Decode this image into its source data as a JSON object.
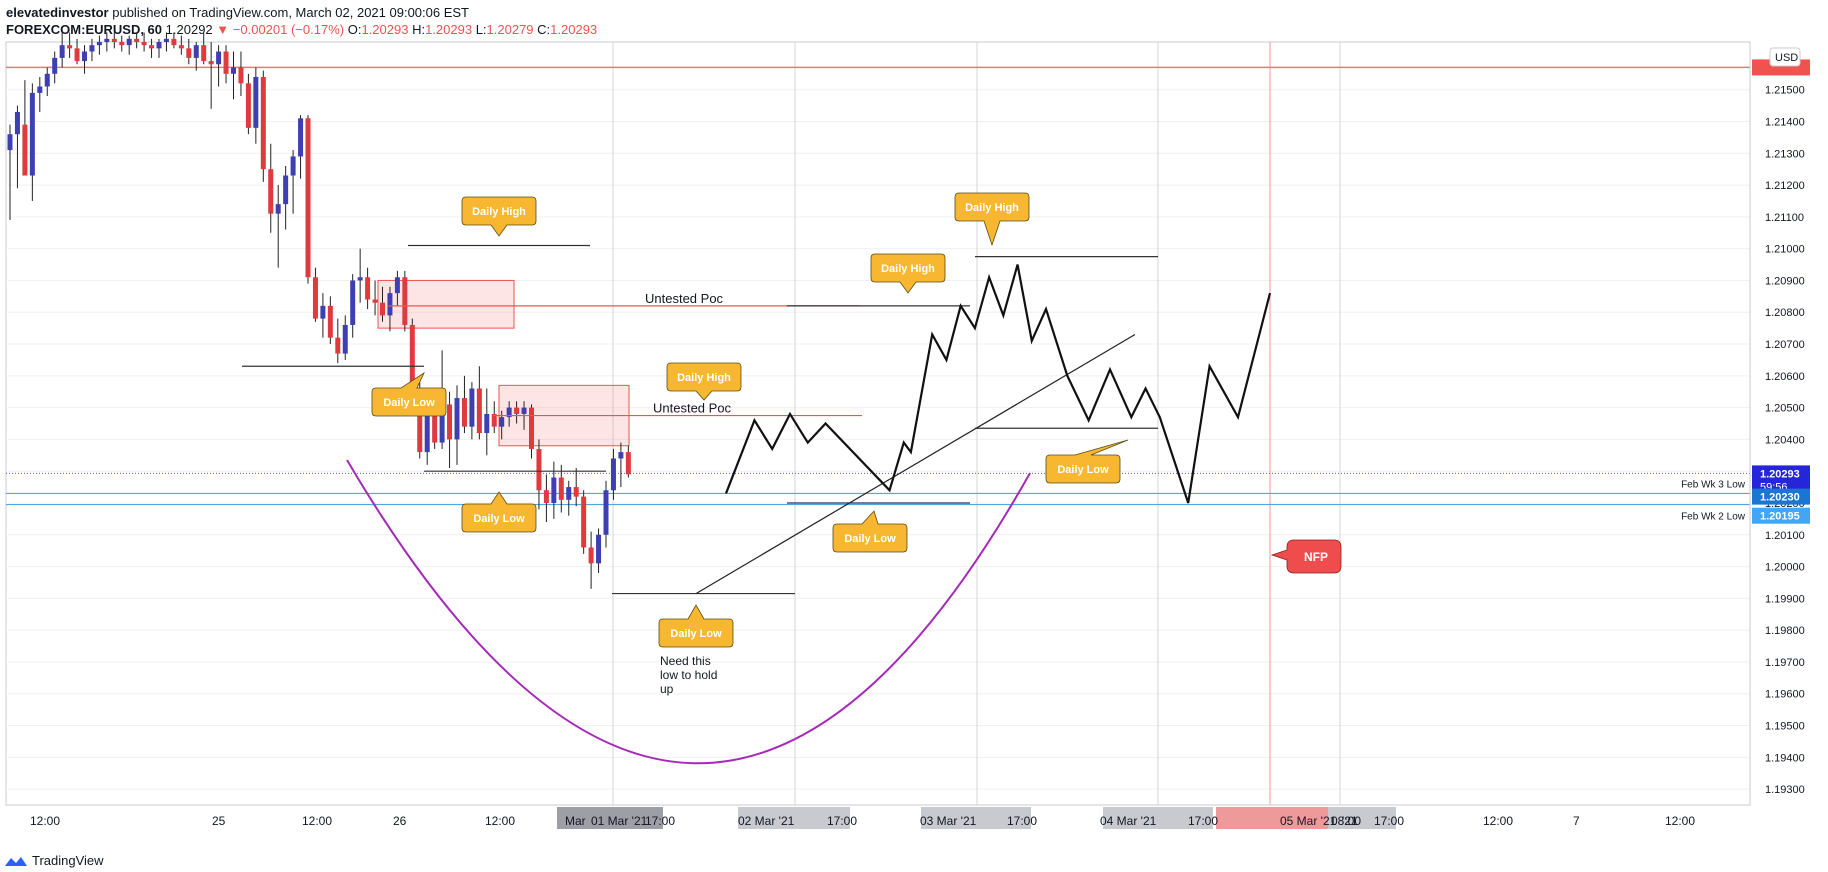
{
  "header": {
    "publisher": "elevatedinvestor",
    "published_text": "published on TradingView.com, March 02, 2021 09:00:06 EST",
    "symbol": "FOREXCOM:EURUSD, 60",
    "last": "1.20292",
    "arrow": "▼",
    "change": "−0.00201 (−0.17%)",
    "o_label": "O:",
    "o": "1.20293",
    "h_label": "H:",
    "h": "1.20293",
    "l_label": "L:",
    "l": "1.20279",
    "c_label": "C:",
    "c": "1.20293"
  },
  "footer": {
    "brand": "TradingView"
  },
  "colors": {
    "up": "#3f3fb4",
    "down": "#e0393e",
    "grid": "#d6d6da",
    "callout": "#f7b731",
    "purple": "#a42ab8",
    "nfp": "#ef4d4d"
  },
  "chart_data": {
    "type": "candlestick",
    "currency": "USD",
    "ylim": [
      1.1925,
      1.2165
    ],
    "y_ticks": [
      "1.21500",
      "1.21400",
      "1.21300",
      "1.21200",
      "1.21100",
      "1.21000",
      "1.20900",
      "1.20800",
      "1.20700",
      "1.20600",
      "1.20500",
      "1.20400",
      "1.20300",
      "1.20200",
      "1.20100",
      "1.20000",
      "1.19900",
      "1.19800",
      "1.19700",
      "1.19600",
      "1.19500",
      "1.19400",
      "1.19300"
    ],
    "x_ticks": [
      "12:00",
      "25",
      "12:00",
      "26",
      "12:00",
      "Mar",
      "01 Mar '21",
      "17:00",
      "02 Mar '21",
      "17:00",
      "03 Mar '21",
      "17:00",
      "04 Mar '21",
      "17:00",
      "05 Mar '21",
      "08:00",
      "'21",
      "17:00",
      "12:00",
      "7",
      "12:00"
    ],
    "price_labels": {
      "current": "1.20293",
      "countdown": "59:56",
      "wk3": "1.20230",
      "wk2": "1.20195",
      "wk3_name": "Feb Wk 3 Low",
      "wk2_name": "Feb Wk 2 Low"
    },
    "levels": {
      "resistance": 1.2157,
      "current": 1.20293,
      "wk3": 1.2023,
      "wk2": 1.20195
    },
    "candles": [
      [
        1.2131,
        1.2139,
        1.2109,
        1.2136
      ],
      [
        1.2136,
        1.2145,
        1.2119,
        1.2143
      ],
      [
        1.2139,
        1.2153,
        1.2123,
        1.2123
      ],
      [
        1.2123,
        1.2152,
        1.2115,
        1.2149
      ],
      [
        1.2149,
        1.2154,
        1.2143,
        1.2151
      ],
      [
        1.2151,
        1.2157,
        1.2148,
        1.2155
      ],
      [
        1.2155,
        1.2162,
        1.2152,
        1.216
      ],
      [
        1.216,
        1.2168,
        1.2157,
        1.2164
      ],
      [
        1.2164,
        1.2168,
        1.216,
        1.2163
      ],
      [
        1.2163,
        1.2166,
        1.2158,
        1.2159
      ],
      [
        1.2159,
        1.2164,
        1.2155,
        1.2162
      ],
      [
        1.2162,
        1.2166,
        1.2159,
        1.2164
      ],
      [
        1.2164,
        1.2167,
        1.2161,
        1.2165
      ],
      [
        1.2165,
        1.2168,
        1.2162,
        1.2166
      ],
      [
        1.2166,
        1.2168,
        1.2163,
        1.2165
      ],
      [
        1.2165,
        1.2167,
        1.2162,
        1.2164
      ],
      [
        1.2164,
        1.2167,
        1.2161,
        1.2166
      ],
      [
        1.2166,
        1.2168,
        1.2163,
        1.2165
      ],
      [
        1.2165,
        1.2168,
        1.2162,
        1.2164
      ],
      [
        1.2164,
        1.2166,
        1.216,
        1.2163
      ],
      [
        1.2163,
        1.2166,
        1.216,
        1.2165
      ],
      [
        1.2165,
        1.2168,
        1.2162,
        1.2166
      ],
      [
        1.2166,
        1.2168,
        1.2163,
        1.2164
      ],
      [
        1.2164,
        1.2167,
        1.2161,
        1.2163
      ],
      [
        1.2163,
        1.2166,
        1.2158,
        1.216
      ],
      [
        1.216,
        1.2165,
        1.2156,
        1.2164
      ],
      [
        1.2164,
        1.2168,
        1.2158,
        1.2159
      ],
      [
        1.2159,
        1.2165,
        1.2144,
        1.2158
      ],
      [
        1.2158,
        1.2164,
        1.2151,
        1.2162
      ],
      [
        1.2162,
        1.2164,
        1.2152,
        1.2155
      ],
      [
        1.2155,
        1.2162,
        1.2147,
        1.2157
      ],
      [
        1.2157,
        1.2162,
        1.2148,
        1.2152
      ],
      [
        1.2152,
        1.2155,
        1.2136,
        1.2138
      ],
      [
        1.2138,
        1.2157,
        1.2133,
        1.2154
      ],
      [
        1.2154,
        1.2156,
        1.2121,
        1.2125
      ],
      [
        1.2125,
        1.2133,
        1.2105,
        1.2111
      ],
      [
        1.2111,
        1.212,
        1.2094,
        1.2114
      ],
      [
        1.2114,
        1.2126,
        1.2106,
        1.2123
      ],
      [
        1.2123,
        1.2131,
        1.2111,
        1.2129
      ],
      [
        1.2129,
        1.2142,
        1.2122,
        1.2141
      ],
      [
        1.2141,
        1.2142,
        1.2089,
        1.2091
      ],
      [
        1.2091,
        1.2094,
        1.2077,
        1.2078
      ],
      [
        1.2078,
        1.2086,
        1.2072,
        1.2082
      ],
      [
        1.2082,
        1.2085,
        1.207,
        1.2072
      ],
      [
        1.2072,
        1.2078,
        1.2064,
        1.2067
      ],
      [
        1.2067,
        1.2079,
        1.2065,
        1.2076
      ],
      [
        1.2076,
        1.2092,
        1.2072,
        1.209
      ],
      [
        1.209,
        1.21,
        1.2083,
        1.2091
      ],
      [
        1.2091,
        1.2094,
        1.2081,
        1.2084
      ],
      [
        1.2084,
        1.209,
        1.2079,
        1.2083
      ],
      [
        1.2083,
        1.2088,
        1.2077,
        1.2079
      ],
      [
        1.2079,
        1.2088,
        1.2074,
        1.2086
      ],
      [
        1.2086,
        1.2093,
        1.2082,
        1.2091
      ],
      [
        1.2091,
        1.2093,
        1.2074,
        1.2076
      ],
      [
        1.2076,
        1.2078,
        1.2053,
        1.2055
      ],
      [
        1.2055,
        1.2058,
        1.2034,
        1.2036
      ],
      [
        1.2036,
        1.2052,
        1.2032,
        1.2049
      ],
      [
        1.2049,
        1.2054,
        1.2037,
        1.2039
      ],
      [
        1.2039,
        1.2068,
        1.2037,
        1.2051
      ],
      [
        1.2051,
        1.2055,
        1.2031,
        1.204
      ],
      [
        1.204,
        1.2057,
        1.2032,
        1.2053
      ],
      [
        1.2053,
        1.206,
        1.2042,
        1.2044
      ],
      [
        1.2044,
        1.2058,
        1.204,
        1.2056
      ],
      [
        1.2056,
        1.2063,
        1.204,
        1.2042
      ],
      [
        1.2042,
        1.2056,
        1.2035,
        1.2048
      ],
      [
        1.2048,
        1.2052,
        1.2042,
        1.2044
      ],
      [
        1.2044,
        1.2049,
        1.204,
        1.2047
      ],
      [
        1.2047,
        1.2052,
        1.2044,
        1.205
      ],
      [
        1.205,
        1.2052,
        1.2045,
        1.2048
      ],
      [
        1.2048,
        1.2052,
        1.2043,
        1.205
      ],
      [
        1.205,
        1.2051,
        1.2034,
        1.2037
      ],
      [
        1.2037,
        1.204,
        1.2018,
        1.2024
      ],
      [
        1.2024,
        1.2029,
        1.2014,
        1.202
      ],
      [
        1.202,
        1.2033,
        1.2015,
        1.2028
      ],
      [
        1.2028,
        1.2032,
        1.2017,
        1.2021
      ],
      [
        1.2021,
        1.2027,
        1.2016,
        1.2025
      ],
      [
        1.2025,
        1.2031,
        1.2019,
        1.2022
      ],
      [
        1.2022,
        1.2024,
        1.2004,
        1.2006
      ],
      [
        1.2006,
        1.2011,
        1.1993,
        1.2001
      ],
      [
        1.2001,
        1.2012,
        1.1998,
        1.201
      ],
      [
        1.201,
        1.2027,
        1.2006,
        1.2024
      ],
      [
        1.2024,
        1.2037,
        1.2021,
        1.2034
      ],
      [
        1.2034,
        1.2039,
        1.2025,
        1.2036
      ],
      [
        1.2036,
        1.2038,
        1.2028,
        1.2029
      ]
    ],
    "projection": [
      [
        1.2023,
        72
      ],
      [
        1.2046,
        80
      ],
      [
        1.2037,
        85
      ],
      [
        1.2048,
        90
      ],
      [
        1.2039,
        95
      ],
      [
        1.2045,
        100
      ],
      [
        1.2024,
        118
      ],
      [
        1.2039,
        122
      ],
      [
        1.2036,
        124
      ],
      [
        1.2073,
        130
      ],
      [
        1.2065,
        134
      ],
      [
        1.2082,
        138
      ],
      [
        1.2075,
        142
      ],
      [
        1.2091,
        146
      ],
      [
        1.2079,
        150
      ],
      [
        1.2095,
        154
      ],
      [
        1.2071,
        158
      ],
      [
        1.2081,
        162
      ],
      [
        1.206,
        168
      ],
      [
        1.2046,
        174
      ],
      [
        1.2062,
        180
      ],
      [
        1.2047,
        186
      ],
      [
        1.2056,
        190
      ],
      [
        1.2047,
        194
      ],
      [
        1.202,
        202
      ],
      [
        1.2063,
        208
      ],
      [
        1.2047,
        216
      ],
      [
        1.2086,
        225
      ]
    ],
    "annotations": {
      "untested_poc_1": {
        "text": "Untested Poc",
        "price": 1.2082
      },
      "untested_poc_2": {
        "text": "Untested Poc",
        "price": 1.20475
      },
      "daily_high": "Daily High",
      "daily_low": "Daily Low",
      "hold_note": [
        "Need this",
        "low to hold",
        "up"
      ],
      "nfp": "NFP"
    }
  }
}
